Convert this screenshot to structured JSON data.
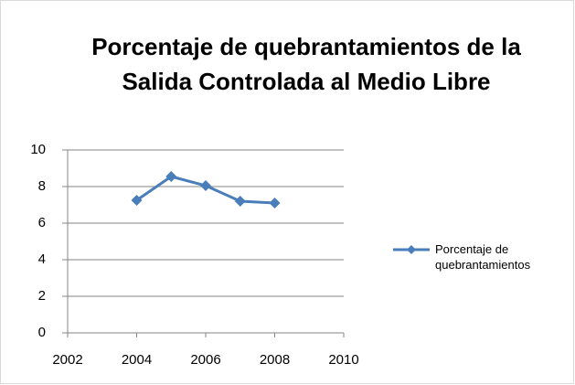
{
  "chart_data": {
    "type": "line",
    "title": "Porcentaje de quebrantamientos de la Salida Controlada al Medio Libre",
    "x": [
      2004,
      2005,
      2006,
      2007,
      2008
    ],
    "series": [
      {
        "name": "Porcentaje de quebrantamientos",
        "color": "#4a7ebb",
        "values": [
          7.25,
          8.55,
          8.05,
          7.2,
          7.1
        ]
      }
    ],
    "xlim": [
      2002,
      2010
    ],
    "xticks": [
      2002,
      2004,
      2006,
      2008,
      2010
    ],
    "ylim": [
      0,
      10
    ],
    "yticks": [
      0,
      2,
      4,
      6,
      8,
      10
    ],
    "grid": true,
    "legend": "right"
  }
}
